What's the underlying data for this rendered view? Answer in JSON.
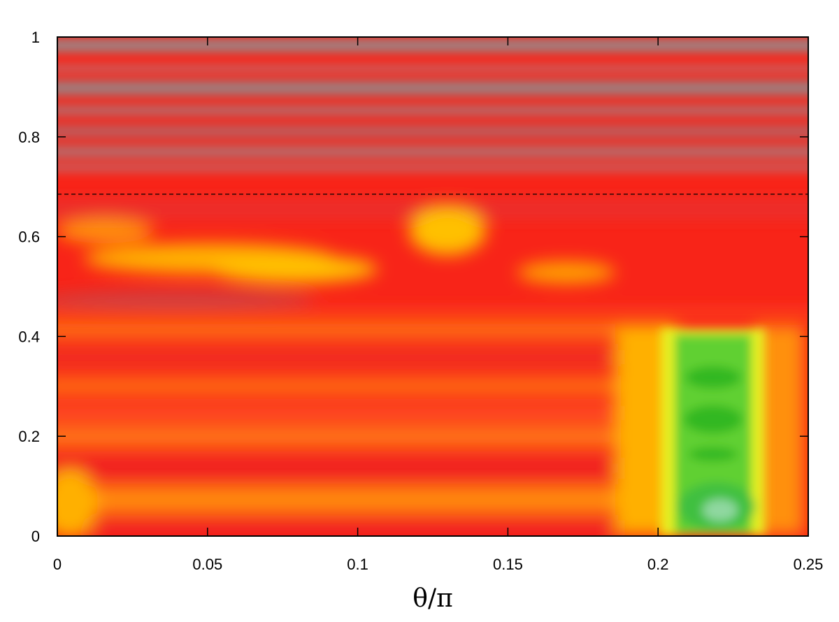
{
  "chart_data": {
    "type": "heatmap",
    "title": "",
    "xlabel": "θ/π",
    "ylabel": "",
    "xlim": [
      0,
      0.25
    ],
    "ylim": [
      0,
      1
    ],
    "x_ticks": [
      "0",
      "0.05",
      "0.1",
      "0.15",
      "0.2",
      "0.25"
    ],
    "x_tick_values": [
      0,
      0.05,
      0.1,
      0.15,
      0.2,
      0.25
    ],
    "y_ticks": [
      "0",
      "0.2",
      "0.4",
      "0.6",
      "0.8",
      "1"
    ],
    "y_tick_values": [
      0,
      0.2,
      0.4,
      0.6,
      0.8,
      1
    ],
    "reference_line": {
      "y": 0.685,
      "style": "dashed",
      "color": "#000000"
    },
    "grid": false,
    "colormap": [
      "#9a9a9a",
      "#ff2020",
      "#ffb000",
      "#ffff20",
      "#20c020",
      "#80d090"
    ],
    "regions": [
      {
        "desc": "gray-red horizontal bands",
        "x": [
          0,
          0.25
        ],
        "y": [
          0.72,
          1.0
        ],
        "level": "low"
      },
      {
        "desc": "red field with yellow patches",
        "x": [
          0,
          0.25
        ],
        "y": [
          0.45,
          0.685
        ],
        "level": "medium"
      },
      {
        "desc": "orange-red horizontal bands",
        "x": [
          0,
          0.195
        ],
        "y": [
          0,
          0.43
        ],
        "level": "medium"
      },
      {
        "desc": "green region",
        "x": [
          0.2,
          0.24
        ],
        "y": [
          0,
          0.42
        ],
        "level": "high"
      }
    ]
  }
}
